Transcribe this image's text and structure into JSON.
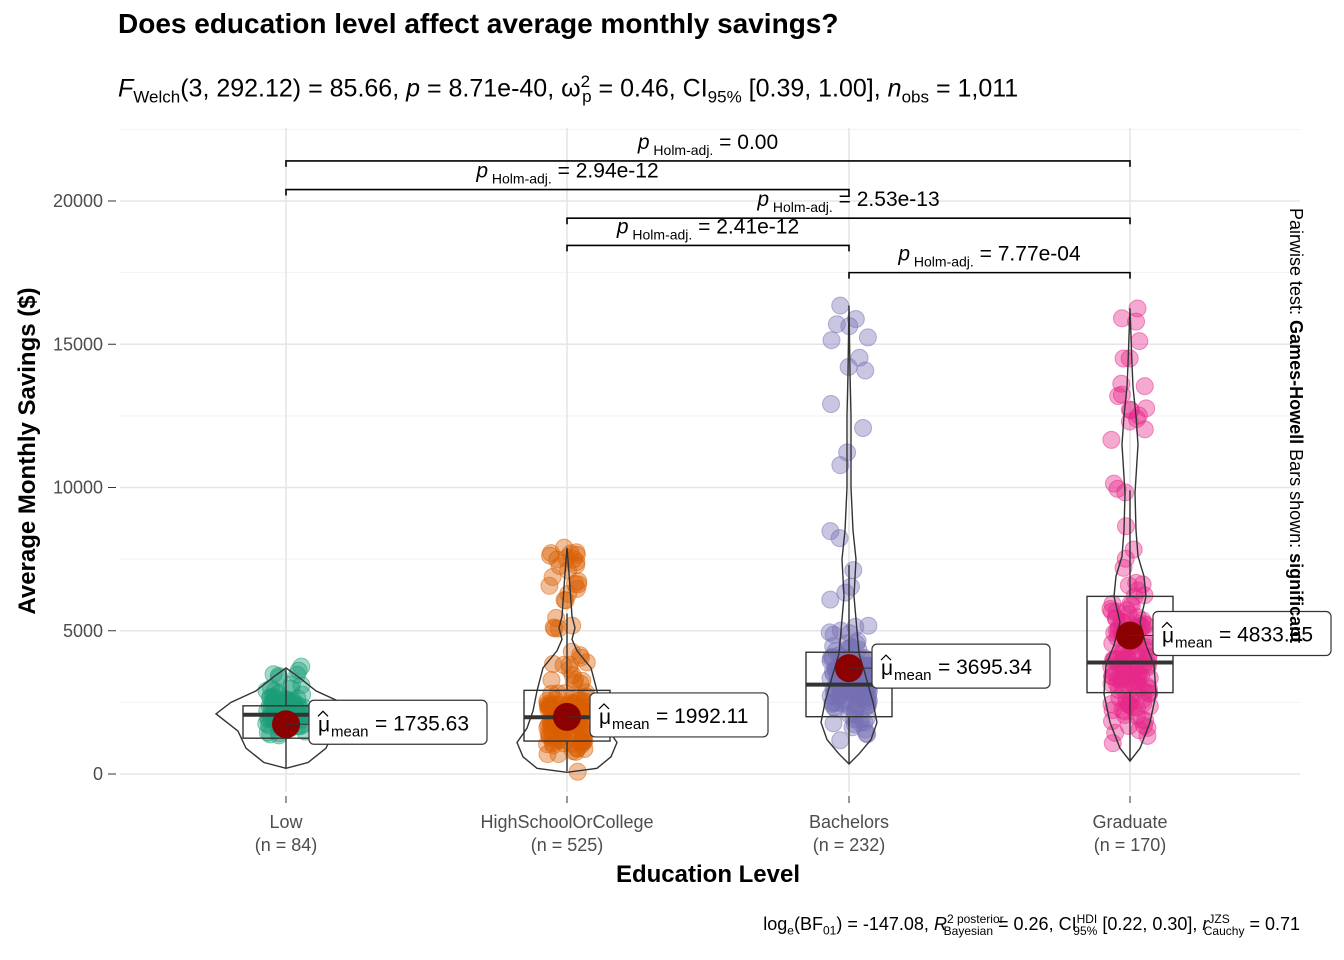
{
  "title": "Does education level affect average monthly savings?",
  "subtitle": {
    "stat_symbol": "F",
    "stat_sub": "Welch",
    "stat_args": "(3, 292.12)",
    "stat_value": "85.66",
    "p_value": "8.71e-40",
    "effect_symbol": "ω",
    "effect_sup": "2",
    "effect_sub": "p",
    "effect_value": "0.46",
    "ci_label": "CI",
    "ci_level": "95%",
    "ci_range": "[0.39, 1.00]",
    "n_label": "n",
    "n_sub": "obs",
    "n_value": "1,011"
  },
  "caption": {
    "log_label": "log",
    "log_sub": "e",
    "bf_label": "BF",
    "bf_sub": "01",
    "bf_value": "-147.08",
    "r_label": "R",
    "r_sup": "2 posterior",
    "r_sub": "Bayesian",
    "r_value": "0.26",
    "ci_label": "CI",
    "ci_sup": "HDI",
    "ci_sub": "95%",
    "ci_range": "[0.22, 0.30]",
    "rc_label": "r",
    "rc_sup": "JZS",
    "rc_sub": "Cauchy",
    "rc_value": "0.71"
  },
  "side_note": {
    "prefix": "Pairwise test: ",
    "test": "Games-Howell",
    "middle": " Bars shown: ",
    "bars": "significant"
  },
  "chart_data": {
    "type": "violin-box-scatter",
    "title": "Does education level affect average monthly savings?",
    "xlabel": "Education Level",
    "ylabel": "Average Monthly Savings ($)",
    "ylim": [
      -500,
      22500
    ],
    "y_ticks": [
      0,
      5000,
      10000,
      15000,
      20000
    ],
    "y_tick_labels": [
      "0",
      "5000",
      "10000",
      "15000",
      "20000"
    ],
    "grid": true,
    "categories": [
      "Low",
      "HighSchoolOrCollege",
      "Bachelors",
      "Graduate"
    ],
    "category_counts": [
      "(n = 84)",
      "(n = 525)",
      "(n = 232)",
      "(n = 170)"
    ],
    "colors": [
      "#1B9E77",
      "#D95F02",
      "#7570B3",
      "#E7298A"
    ],
    "mean_color": "#8B0000",
    "mean_label_symbol": "μ",
    "mean_label_sub": "mean",
    "groups": [
      {
        "name": "Low",
        "n": 84,
        "mean": 1735.63,
        "mean_label": "1735.63",
        "box": {
          "q1": 1250,
          "median": 2070,
          "q3": 2380,
          "whisker_low": 200,
          "whisker_high": 3650
        },
        "min": 150,
        "max": 3750
      },
      {
        "name": "HighSchoolOrCollege",
        "n": 525,
        "mean": 1992.11,
        "mean_label": "1992.11",
        "box": {
          "q1": 1150,
          "median": 1980,
          "q3": 2920,
          "whisker_low": 100,
          "whisker_high": 5600
        },
        "min": 50,
        "max": 7900
      },
      {
        "name": "Bachelors",
        "n": 232,
        "mean": 3695.34,
        "mean_label": "3695.34",
        "box": {
          "q1": 2000,
          "median": 3120,
          "q3": 4250,
          "whisker_low": 350,
          "whisker_high": 7300
        },
        "min": 350,
        "max": 16350
      },
      {
        "name": "Graduate",
        "n": 170,
        "mean": 4833.65,
        "mean_label": "4833.65",
        "box": {
          "q1": 2840,
          "median": 3890,
          "q3": 6200,
          "whisker_low": 450,
          "whisker_high": 9900
        },
        "min": 450,
        "max": 16250
      }
    ],
    "pairwise": [
      {
        "from": "Low",
        "to": "Graduate",
        "y": 21400,
        "label_symbol": "p",
        "label_sub": "Holm-adj.",
        "label_value": "0.00"
      },
      {
        "from": "Low",
        "to": "Bachelors",
        "y": 20400,
        "label_symbol": "p",
        "label_sub": "Holm-adj.",
        "label_value": "2.94e-12"
      },
      {
        "from": "HighSchoolOrCollege",
        "to": "Graduate",
        "y": 19400,
        "label_symbol": "p",
        "label_sub": "Holm-adj.",
        "label_value": "2.53e-13"
      },
      {
        "from": "HighSchoolOrCollege",
        "to": "Bachelors",
        "y": 18450,
        "label_symbol": "p",
        "label_sub": "Holm-adj.",
        "label_value": "2.41e-12"
      },
      {
        "from": "Bachelors",
        "to": "Graduate",
        "y": 17500,
        "label_symbol": "p",
        "label_sub": "Holm-adj.",
        "label_value": "7.77e-04"
      }
    ]
  }
}
